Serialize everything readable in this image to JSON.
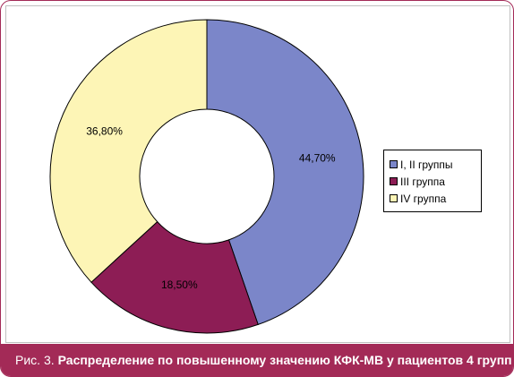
{
  "caption": {
    "figure": "Рис. 3.",
    "title": "Распределение по повышенному значению КФК-МВ у пациентов 4 групп"
  },
  "colors": {
    "accent": "#a32a57",
    "series": [
      "#7b86c9",
      "#8d1d55",
      "#fdf5b6"
    ]
  },
  "chart_data": {
    "type": "pie",
    "style": "donut",
    "legend_position": "right",
    "categories": [
      "I, II группы",
      "III группа",
      "IV группа"
    ],
    "values": [
      44.7,
      18.5,
      36.8
    ],
    "data_labels": [
      "44,70%",
      "18,50%",
      "36,80%"
    ]
  }
}
